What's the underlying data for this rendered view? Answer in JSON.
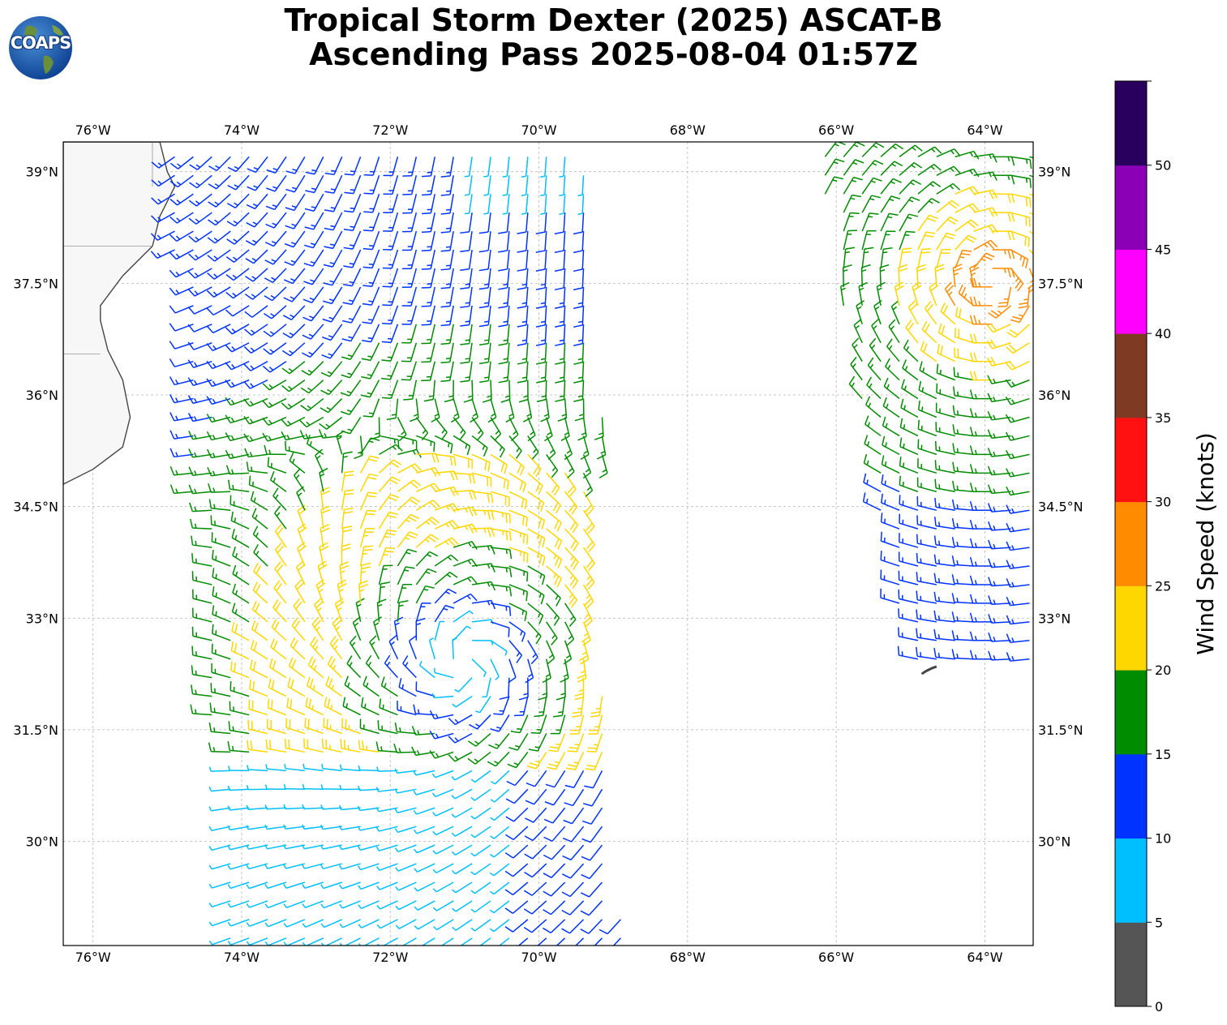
{
  "title": {
    "line1": "Tropical Storm Dexter (2025) ASCAT-B",
    "line2": "Ascending Pass 2025-08-04 01:57Z"
  },
  "logo": {
    "text": "COAPS",
    "icon": "globe-logo-icon"
  },
  "map": {
    "lon_range": [
      -76.4,
      -63.35
    ],
    "lat_range": [
      28.6,
      39.4
    ],
    "lon_ticks": [
      "76°W",
      "74°W",
      "72°W",
      "70°W",
      "68°W",
      "66°W",
      "64°W"
    ],
    "lat_ticks": [
      "39°N",
      "37.5°N",
      "36°N",
      "34.5°N",
      "33°N",
      "31.5°N",
      "30°N"
    ],
    "gridlines": true
  },
  "colorbar": {
    "label": "Wind Speed (knots)",
    "ticks": [
      "0",
      "5",
      "10",
      "15",
      "20",
      "25",
      "30",
      "35",
      "40",
      "45",
      "50"
    ],
    "colors": [
      "#555555",
      "#00bfff",
      "#0033ff",
      "#008c00",
      "#ffd700",
      "#ff8c00",
      "#ff1111",
      "#7f3a24",
      "#ff00ff",
      "#8b00b7",
      "#2a005e"
    ]
  },
  "chart_data": {
    "type": "scatter",
    "description_units": "wind barbs; x = longitude (deg), y = latitude (deg), speed in knots",
    "swaths": [
      {
        "lon_west_edge": -74.6,
        "lon_east_edge": -69.3
      },
      {
        "lon_west_edge": -66.3,
        "lon_east_edge": -63.35
      }
    ],
    "storm_center_estimate": {
      "lon": -71.0,
      "lat": 32.4
    }
  }
}
